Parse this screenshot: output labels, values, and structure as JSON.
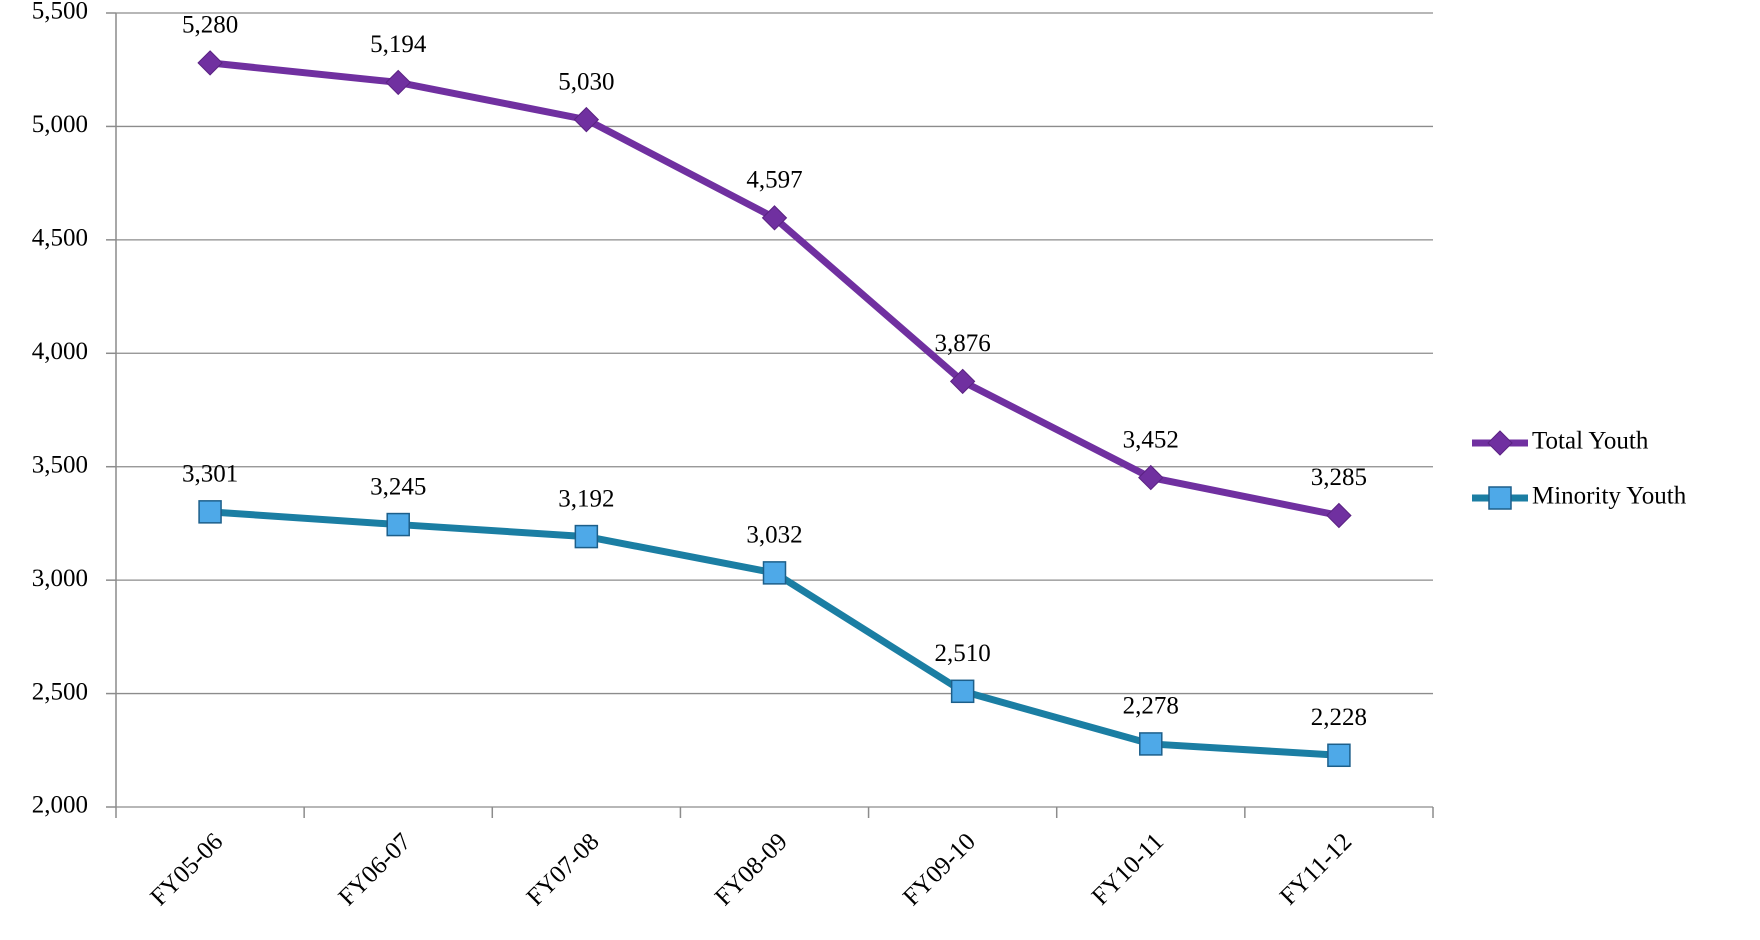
{
  "chart_data": {
    "type": "line",
    "categories": [
      "FY05-06",
      "FY06-07",
      "FY07-08",
      "FY08-09",
      "FY09-10",
      "FY10-11",
      "FY11-12"
    ],
    "series": [
      {
        "name": "Total Youth",
        "color": "#7030a0",
        "marker": "diamond",
        "values": [
          5280,
          5194,
          5030,
          4597,
          3876,
          3452,
          3285
        ],
        "value_labels": [
          "5,280",
          "5,194",
          "5,030",
          "4,597",
          "3,876",
          "3,452",
          "3,285"
        ]
      },
      {
        "name": "Minority Youth",
        "color": "#1b7ea3",
        "marker": "square",
        "values": [
          3301,
          3245,
          3192,
          3032,
          2510,
          2278,
          2228
        ],
        "value_labels": [
          "3,301",
          "3,245",
          "3,192",
          "3,032",
          "2,510",
          "2,278",
          "2,228"
        ]
      }
    ],
    "ylim": [
      2000,
      5500
    ],
    "yticks": [
      {
        "value": 2000,
        "label": "2,000"
      },
      {
        "value": 2500,
        "label": "2,500"
      },
      {
        "value": 3000,
        "label": "3,000"
      },
      {
        "value": 3500,
        "label": "3,500"
      },
      {
        "value": 4000,
        "label": "4,000"
      },
      {
        "value": 4500,
        "label": "4,500"
      },
      {
        "value": 5000,
        "label": "5,000"
      },
      {
        "value": 5500,
        "label": "5,500"
      }
    ],
    "grid": true,
    "legend": "right"
  }
}
